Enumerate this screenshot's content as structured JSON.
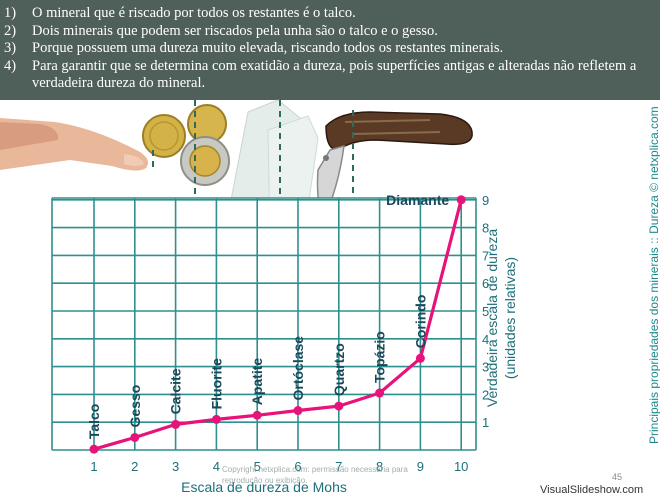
{
  "answers": [
    {
      "num": "1)",
      "text": "O mineral que é riscado por todos os restantes é o talco."
    },
    {
      "num": "2)",
      "text": "Dois minerais que podem ser riscados pela unha são o talco e o gesso."
    },
    {
      "num": "3)",
      "text": "Porque possuem uma dureza muito elevada, riscando todos os restantes minerais."
    },
    {
      "num": "4)",
      "text": "Para garantir que se determina com exatidão a dureza, pois superfícies antigas e alteradas não refletem a verdadeira dureza do mineral."
    }
  ],
  "side_label": "Principais propriedades dos minerais :: Dureza © netxplica.com",
  "copyright": "Copyright netxplica.com: permissão necessária para reprodução ou exibição.",
  "page_number": "45",
  "brand": "VisualSlideshow.com",
  "colors": {
    "header": "#4f5f5a",
    "curve": "#e8137a",
    "grid": "#2e8f8f",
    "labels": "#1a4a5a",
    "axis_text": "#1d6f7a"
  },
  "chart_data": {
    "type": "line",
    "xlabel": "Escala de dureza de Mohs",
    "ylabel": "Verdadeira escala de dureza",
    "ylabel2": "(unidades relativas)",
    "x_ticks": [
      "1",
      "2",
      "3",
      "4",
      "5",
      "6",
      "7",
      "8",
      "9",
      "10"
    ],
    "y_ticks": [
      "1",
      "2",
      "3",
      "4",
      "5",
      "6",
      "7",
      "8",
      "9"
    ],
    "xlim": [
      1,
      10
    ],
    "ylim": [
      0,
      9
    ],
    "grid": true,
    "series": [
      {
        "points": [
          {
            "x": 1,
            "y": 0.03,
            "label": "Talco"
          },
          {
            "x": 2,
            "y": 0.45,
            "label": "Gesso"
          },
          {
            "x": 3,
            "y": 0.92,
            "label": "Calcite"
          },
          {
            "x": 4,
            "y": 1.1,
            "label": "Fluorite"
          },
          {
            "x": 5,
            "y": 1.25,
            "label": "Apatite"
          },
          {
            "x": 6,
            "y": 1.42,
            "label": "Ortóclase"
          },
          {
            "x": 7,
            "y": 1.58,
            "label": "Quartzo"
          },
          {
            "x": 8,
            "y": 2.05,
            "label": "Topázio"
          },
          {
            "x": 9,
            "y": 3.3,
            "label": "Corindo"
          },
          {
            "x": 10,
            "y": 9.0,
            "label": "Diamante"
          }
        ]
      }
    ]
  }
}
